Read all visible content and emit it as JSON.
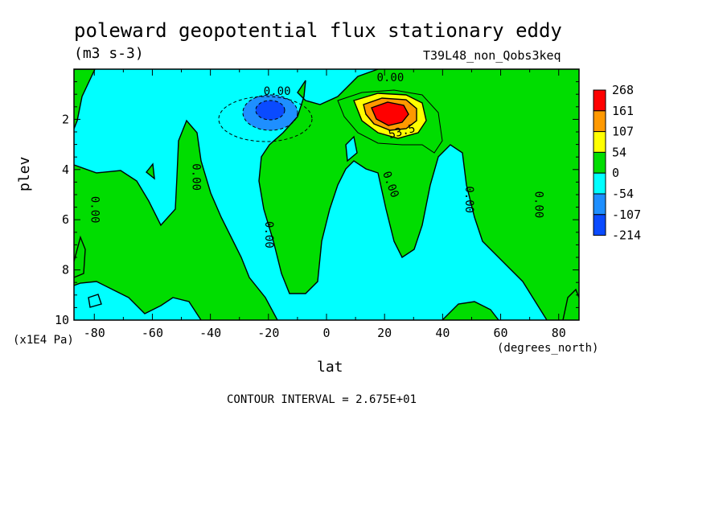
{
  "chart_data": {
    "type": "heatmap",
    "title": "poleward geopotential flux stationary eddy",
    "units": "(m3 s-3)",
    "run_id": "T39L48_non_Qobs3keq",
    "xlabel": "lat",
    "ylabel": "plev",
    "x_units": "(degrees_north)",
    "y_units": "(x1E4 Pa)",
    "xlim": [
      -87,
      87
    ],
    "ylim": [
      10,
      0
    ],
    "x_ticks": [
      -80,
      -60,
      -40,
      -20,
      0,
      20,
      40,
      60,
      80
    ],
    "x_tick_labels": [
      "-80",
      "-60",
      "-40",
      "-20",
      "0",
      "20",
      "40",
      "60",
      "80"
    ],
    "y_ticks": [
      2,
      4,
      6,
      8,
      10
    ],
    "y_tick_labels": [
      "2",
      "4",
      "6",
      "8",
      "10"
    ],
    "contour_interval_text": "CONTOUR INTERVAL = 2.675E+01",
    "legend": {
      "placement": "right",
      "levels": [
        "268",
        "161",
        "107",
        "54",
        "0",
        "-54",
        "-107",
        "-214"
      ],
      "colors": [
        "#ff0000",
        "#ff9900",
        "#ffff00",
        "#00dd00",
        "#00ffff",
        "#1e8fff",
        "#0a4bff"
      ]
    },
    "contour_labels": [
      {
        "text": "0.00",
        "x": -17,
        "y": 0.9,
        "rotate": 0
      },
      {
        "text": "0.00",
        "x": 22,
        "y": 0.35,
        "rotate": 0
      },
      {
        "text": "53.5",
        "x": 26,
        "y": 2.5,
        "rotate": -15
      },
      {
        "text": "0.00",
        "x": -80,
        "y": 5.6,
        "rotate": 90
      },
      {
        "text": "0.00",
        "x": -45,
        "y": 4.3,
        "rotate": 90
      },
      {
        "text": "0.00",
        "x": -20,
        "y": 6.6,
        "rotate": 90
      },
      {
        "text": "0.00",
        "x": 22,
        "y": 4.6,
        "rotate": 70
      },
      {
        "text": "0.00",
        "x": 49,
        "y": 5.2,
        "rotate": 90
      },
      {
        "text": "0.00",
        "x": 73,
        "y": 5.4,
        "rotate": 90
      }
    ],
    "colors": {
      "positive_small": "#00dd00",
      "negative_small": "#00ffff",
      "max_positive": "#ff0000",
      "min_negative": "#0a4bff"
    }
  }
}
